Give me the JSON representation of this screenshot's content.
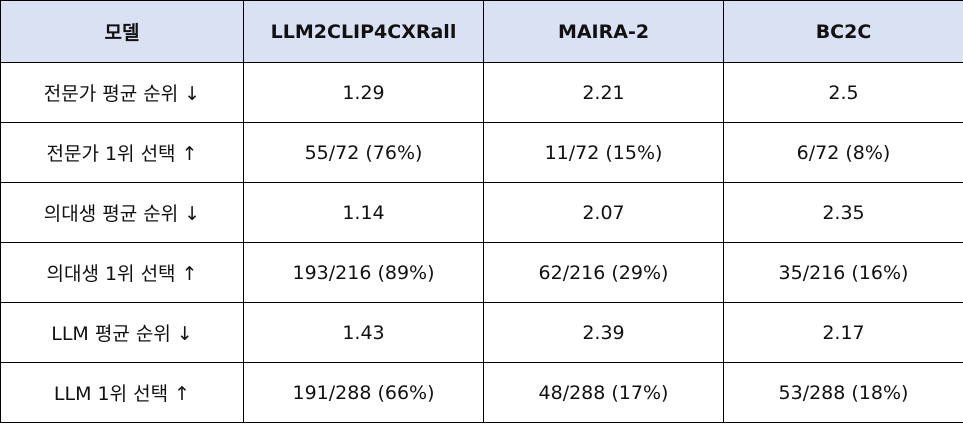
{
  "table": {
    "header": [
      "모델",
      "LLM2CLIP4CXRall",
      "MAIRA-2",
      "BC2C"
    ],
    "rows": [
      [
        "전문가 평균 순위 ↓",
        "1.29",
        "2.21",
        "2.5"
      ],
      [
        "전문가 1위 선택 ↑",
        "55/72 (76%)",
        "11/72 (15%)",
        "6/72 (8%)"
      ],
      [
        "의대생 평균 순위 ↓",
        "1.14",
        "2.07",
        "2.35"
      ],
      [
        "의대생 1위 선택 ↑",
        "193/216 (89%)",
        "62/216 (29%)",
        "35/216 (16%)"
      ],
      [
        "LLM 평균 순위 ↓",
        "1.43",
        "2.39",
        "2.17"
      ],
      [
        "LLM 1위 선택 ↑",
        "191/288 (66%)",
        "48/288 (17%)",
        "53/288 (18%)"
      ]
    ]
  }
}
